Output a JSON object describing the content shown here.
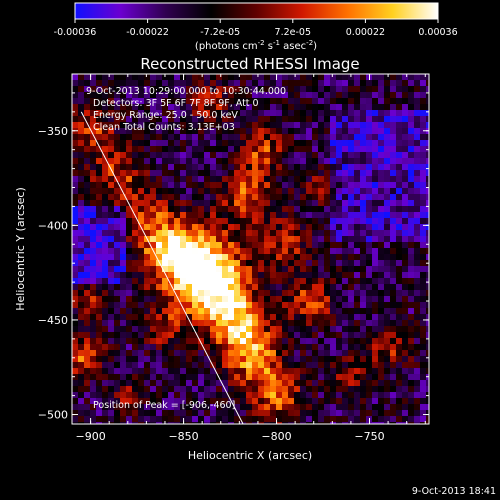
{
  "chart_data": {
    "type": "heatmap",
    "title": "Reconstructed RHESSI Image",
    "xlabel": "Heliocentric X (arcsec)",
    "ylabel": "Heliocentric Y (arcsec)",
    "xlim": [
      -910,
      -718
    ],
    "ylim": [
      -505,
      -320
    ],
    "x_ticks": [
      -900,
      -850,
      -800,
      -750
    ],
    "y_ticks": [
      -350,
      -400,
      -450,
      -500
    ],
    "colorbar": {
      "min": -0.00036,
      "max": 0.00036,
      "ticks": [
        "-0.00036",
        "-0.00022",
        "-7.2e-05",
        "7.2e-05",
        "0.00022",
        "0.00036"
      ],
      "unit_parts": [
        "(photons cm",
        "-2",
        " s",
        "-1",
        " asec",
        "-2",
        ")"
      ],
      "colors": [
        "#1010ff",
        "#6b00d0",
        "#300050",
        "#000000",
        "#600000",
        "#d01800",
        "#ff7000",
        "#ffd020",
        "#ffffff"
      ]
    },
    "annotations": [
      "9-Oct-2013 10:29:00.000 to 10:30:44.000",
      "Detectors: 3F 5F 6F 7F 8F 9F, Att 0",
      "Energy Range: 25.0 - 50.0 keV",
      "Clean    Total Counts: 3.13E+03"
    ],
    "peak_label": "Position of Peak = [-906,-460]",
    "peak_position": [
      -906,
      -460
    ],
    "limb_line": [
      [
        -905,
        -340
      ],
      [
        -818,
        -505
      ]
    ]
  },
  "footer": {
    "timestamp": "9-Oct-2013 18:41"
  }
}
